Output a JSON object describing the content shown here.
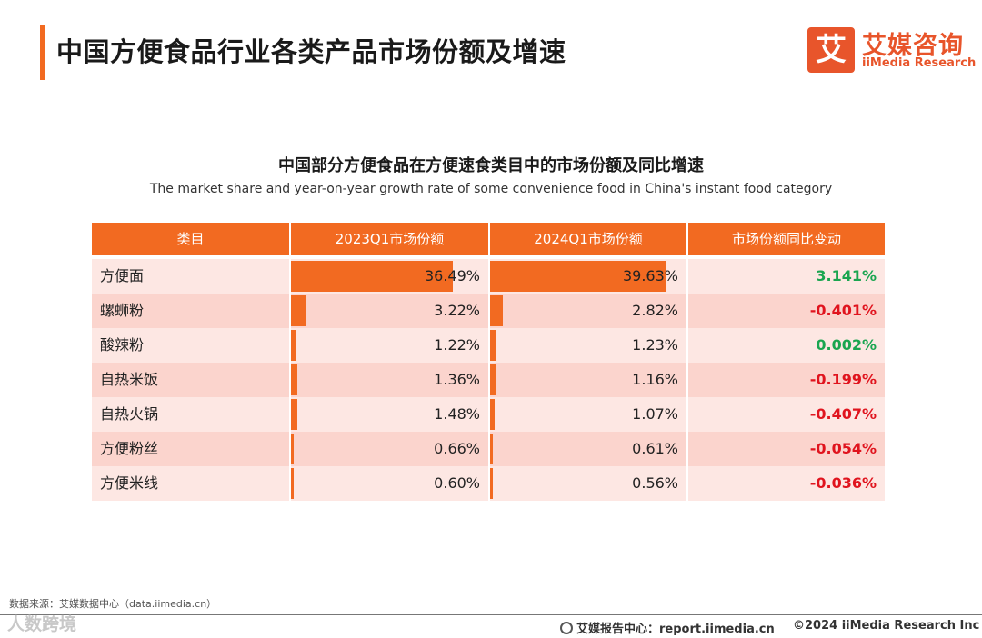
{
  "header": {
    "title": "中国方便食品行业各类产品市场份额及增速"
  },
  "logo": {
    "mark": "艾",
    "name_cn": "艾媒咨询",
    "name_en": "iiMedia Research"
  },
  "chart_data": {
    "type": "table",
    "title": "中国部分方便食品在方便速食类目中的市场份额及同比增速",
    "subtitle": "The market share and year-on-year growth rate of some convenience food in China's instant food category",
    "columns": [
      "类目",
      "2023Q1市场份额",
      "2024Q1市场份额",
      "市场份额同比变动"
    ],
    "scale_max": 100,
    "rows": [
      {
        "name": "方便面",
        "share_2023": 36.49,
        "share_2024": 39.63,
        "label_2023": "36.49%",
        "label_2024": "39.63%",
        "change": 3.141,
        "change_label": "3.141%"
      },
      {
        "name": "螺蛳粉",
        "share_2023": 3.22,
        "share_2024": 2.82,
        "label_2023": "3.22%",
        "label_2024": "2.82%",
        "change": -0.401,
        "change_label": "-0.401%"
      },
      {
        "name": "酸辣粉",
        "share_2023": 1.22,
        "share_2024": 1.23,
        "label_2023": "1.22%",
        "label_2024": "1.23%",
        "change": 0.002,
        "change_label": "0.002%"
      },
      {
        "name": "自热米饭",
        "share_2023": 1.36,
        "share_2024": 1.16,
        "label_2023": "1.36%",
        "label_2024": "1.16%",
        "change": -0.199,
        "change_label": "-0.199%"
      },
      {
        "name": "自热火锅",
        "share_2023": 1.48,
        "share_2024": 1.07,
        "label_2023": "1.48%",
        "label_2024": "1.07%",
        "change": -0.407,
        "change_label": "-0.407%"
      },
      {
        "name": "方便粉丝",
        "share_2023": 0.66,
        "share_2024": 0.61,
        "label_2023": "0.66%",
        "label_2024": "0.61%",
        "change": -0.054,
        "change_label": "-0.054%"
      },
      {
        "name": "方便米线",
        "share_2023": 0.6,
        "share_2024": 0.56,
        "label_2023": "0.60%",
        "label_2024": "0.56%",
        "change": -0.036,
        "change_label": "-0.036%"
      }
    ]
  },
  "colors": {
    "accent": "#f26a21",
    "positive": "#1aa550",
    "negative": "#e0141e"
  },
  "footer": {
    "source": "数据来源：艾媒数据中心（data.iimedia.cn）",
    "watermark": "人数跨境",
    "report": "艾媒报告中心：report.iimedia.cn",
    "copyright": "©2024  iiMedia Research Inc",
    "report_icon": "globe-icon"
  }
}
